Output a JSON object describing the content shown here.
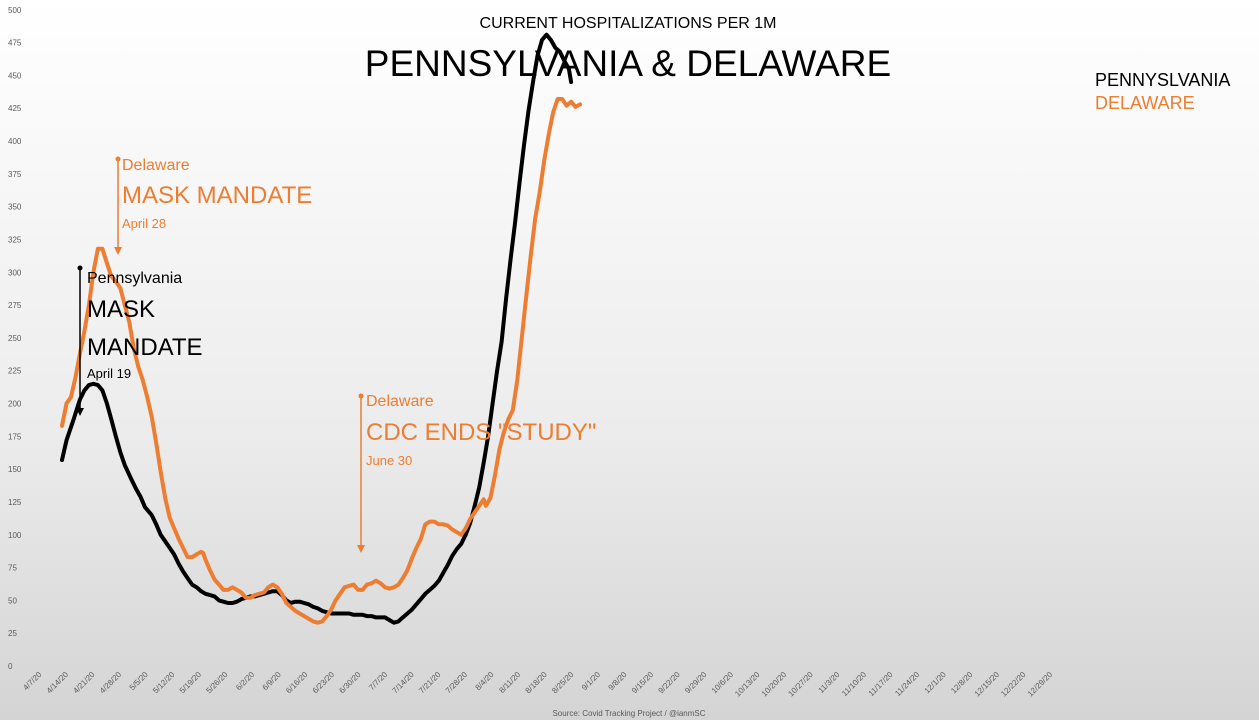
{
  "chart_data": {
    "type": "line",
    "title": "PENNSYLVANIA & DELAWARE",
    "subtitle": "CURRENT HOSPITALIZATIONS PER 1M",
    "source": "Source: Covid Tracking Project / @ianmSC",
    "ylim": [
      0,
      500
    ],
    "yticks": [
      0,
      25,
      50,
      75,
      100,
      125,
      150,
      175,
      200,
      225,
      250,
      275,
      300,
      325,
      350,
      375,
      400,
      425,
      450,
      475,
      500
    ],
    "x_tick_labels": [
      "4/7/20",
      "4/14/20",
      "4/21/20",
      "4/28/20",
      "5/5/20",
      "5/12/20",
      "5/19/20",
      "5/26/20",
      "6/2/20",
      "6/9/20",
      "6/16/20",
      "6/23/20",
      "6/30/20",
      "7/7/20",
      "7/14/20",
      "7/21/20",
      "7/28/20",
      "8/4/20",
      "8/11/20",
      "8/18/20",
      "8/25/20",
      "9/1/20",
      "9/8/20",
      "9/15/20",
      "9/22/20",
      "9/29/20",
      "10/6/20",
      "10/13/20",
      "10/20/20",
      "10/27/20",
      "11/3/20",
      "11/10/20",
      "11/17/20",
      "11/24/20",
      "12/1/20",
      "12/8/20",
      "12/15/20",
      "12/22/20",
      "12/29/20"
    ],
    "grid": false,
    "series": [
      {
        "name": "PENNYSLVANIA",
        "color": "#000000",
        "points": [
          [
            0,
            157
          ],
          [
            2,
            172
          ],
          [
            5,
            187
          ],
          [
            8,
            203
          ],
          [
            10,
            210
          ],
          [
            12,
            214
          ],
          [
            14,
            215
          ],
          [
            16,
            214
          ],
          [
            18,
            210
          ],
          [
            20,
            200
          ],
          [
            22,
            188
          ],
          [
            24,
            175
          ],
          [
            26,
            163
          ],
          [
            28,
            153
          ],
          [
            31,
            142
          ],
          [
            33,
            135
          ],
          [
            35,
            129
          ],
          [
            37,
            121
          ],
          [
            40,
            115
          ],
          [
            42,
            108
          ],
          [
            44,
            100
          ],
          [
            46,
            95
          ],
          [
            48,
            90
          ],
          [
            50,
            85
          ],
          [
            52,
            78
          ],
          [
            54,
            72
          ],
          [
            56,
            67
          ],
          [
            58,
            62
          ],
          [
            60,
            60
          ],
          [
            62,
            57
          ],
          [
            64,
            55
          ],
          [
            66,
            54
          ],
          [
            68,
            53
          ],
          [
            70,
            50
          ],
          [
            72,
            49
          ],
          [
            74,
            48
          ],
          [
            76,
            48
          ],
          [
            78,
            49
          ],
          [
            80,
            51
          ],
          [
            82,
            52
          ],
          [
            84,
            53
          ],
          [
            86,
            53
          ],
          [
            88,
            54
          ],
          [
            90,
            55
          ],
          [
            92,
            56
          ],
          [
            94,
            57
          ],
          [
            96,
            57
          ],
          [
            98,
            54
          ],
          [
            100,
            50
          ],
          [
            102,
            48
          ],
          [
            104,
            49
          ],
          [
            106,
            49
          ],
          [
            108,
            48
          ],
          [
            110,
            47
          ],
          [
            112,
            45
          ],
          [
            114,
            44
          ],
          [
            116,
            42
          ],
          [
            118,
            41
          ],
          [
            120,
            40
          ],
          [
            122,
            40
          ],
          [
            124,
            40
          ],
          [
            126,
            40
          ],
          [
            128,
            40
          ],
          [
            130,
            39
          ],
          [
            132,
            39
          ],
          [
            134,
            39
          ],
          [
            136,
            38
          ],
          [
            138,
            38
          ],
          [
            140,
            37
          ],
          [
            142,
            37
          ],
          [
            144,
            37
          ],
          [
            146,
            35
          ],
          [
            148,
            33
          ],
          [
            150,
            34
          ],
          [
            152,
            37
          ],
          [
            154,
            40
          ],
          [
            156,
            43
          ],
          [
            158,
            47
          ],
          [
            160,
            51
          ],
          [
            162,
            55
          ],
          [
            164,
            58
          ],
          [
            166,
            61
          ],
          [
            168,
            65
          ],
          [
            170,
            71
          ],
          [
            172,
            77
          ],
          [
            174,
            84
          ],
          [
            176,
            89
          ],
          [
            178,
            93
          ],
          [
            180,
            100
          ],
          [
            182,
            109
          ],
          [
            184,
            122
          ],
          [
            186,
            136
          ],
          [
            188,
            155
          ],
          [
            190,
            175
          ],
          [
            192,
            200
          ],
          [
            194,
            225
          ],
          [
            196,
            247
          ],
          [
            198,
            280
          ],
          [
            200,
            310
          ],
          [
            202,
            338
          ],
          [
            204,
            368
          ],
          [
            206,
            397
          ],
          [
            208,
            423
          ],
          [
            210,
            445
          ],
          [
            212,
            465
          ],
          [
            214,
            477
          ],
          [
            216,
            481
          ],
          [
            218,
            477
          ],
          [
            220,
            471
          ],
          [
            222,
            468
          ],
          [
            224,
            461
          ],
          [
            226,
            455
          ],
          [
            227,
            445
          ]
        ]
      },
      {
        "name": "DELAWARE",
        "color": "#ED7D31",
        "points": [
          [
            0,
            183
          ],
          [
            2,
            200
          ],
          [
            4,
            205
          ],
          [
            6,
            220
          ],
          [
            8,
            238
          ],
          [
            10,
            255
          ],
          [
            12,
            275
          ],
          [
            14,
            300
          ],
          [
            16,
            318
          ],
          [
            18,
            318
          ],
          [
            20,
            307
          ],
          [
            22,
            297
          ],
          [
            24,
            293
          ],
          [
            26,
            288
          ],
          [
            28,
            275
          ],
          [
            30,
            262
          ],
          [
            32,
            242
          ],
          [
            34,
            228
          ],
          [
            36,
            218
          ],
          [
            38,
            205
          ],
          [
            40,
            190
          ],
          [
            42,
            170
          ],
          [
            44,
            148
          ],
          [
            46,
            128
          ],
          [
            48,
            113
          ],
          [
            50,
            105
          ],
          [
            52,
            97
          ],
          [
            54,
            90
          ],
          [
            56,
            83
          ],
          [
            58,
            83
          ],
          [
            60,
            85
          ],
          [
            62,
            87
          ],
          [
            63,
            86
          ],
          [
            64,
            81
          ],
          [
            66,
            73
          ],
          [
            68,
            66
          ],
          [
            70,
            62
          ],
          [
            72,
            58
          ],
          [
            74,
            58
          ],
          [
            76,
            60
          ],
          [
            78,
            58
          ],
          [
            80,
            56
          ],
          [
            82,
            52
          ],
          [
            84,
            52
          ],
          [
            86,
            54
          ],
          [
            88,
            55
          ],
          [
            90,
            56
          ],
          [
            92,
            60
          ],
          [
            94,
            62
          ],
          [
            96,
            60
          ],
          [
            98,
            55
          ],
          [
            100,
            48
          ],
          [
            102,
            45
          ],
          [
            104,
            42
          ],
          [
            106,
            40
          ],
          [
            108,
            38
          ],
          [
            110,
            36
          ],
          [
            112,
            34
          ],
          [
            114,
            33
          ],
          [
            116,
            34
          ],
          [
            118,
            38
          ],
          [
            120,
            43
          ],
          [
            122,
            50
          ],
          [
            124,
            55
          ],
          [
            126,
            60
          ],
          [
            128,
            61
          ],
          [
            130,
            62
          ],
          [
            132,
            58
          ],
          [
            134,
            58
          ],
          [
            136,
            62
          ],
          [
            138,
            63
          ],
          [
            140,
            65
          ],
          [
            142,
            63
          ],
          [
            144,
            60
          ],
          [
            146,
            59
          ],
          [
            148,
            60
          ],
          [
            150,
            62
          ],
          [
            152,
            67
          ],
          [
            154,
            73
          ],
          [
            156,
            82
          ],
          [
            158,
            90
          ],
          [
            160,
            97
          ],
          [
            162,
            108
          ],
          [
            164,
            110
          ],
          [
            166,
            110
          ],
          [
            168,
            108
          ],
          [
            170,
            108
          ],
          [
            172,
            107
          ],
          [
            174,
            104
          ],
          [
            176,
            102
          ],
          [
            178,
            100
          ],
          [
            180,
            105
          ],
          [
            182,
            112
          ],
          [
            184,
            117
          ],
          [
            186,
            122
          ],
          [
            188,
            127
          ],
          [
            189,
            122
          ],
          [
            191,
            128
          ],
          [
            193,
            145
          ],
          [
            195,
            165
          ],
          [
            197,
            178
          ],
          [
            199,
            188
          ],
          [
            201,
            195
          ],
          [
            203,
            218
          ],
          [
            205,
            250
          ],
          [
            207,
            282
          ],
          [
            209,
            313
          ],
          [
            211,
            341
          ],
          [
            213,
            361
          ],
          [
            215,
            385
          ],
          [
            217,
            405
          ],
          [
            219,
            422
          ],
          [
            221,
            432
          ],
          [
            223,
            432
          ],
          [
            225,
            427
          ],
          [
            227,
            430
          ],
          [
            229,
            426
          ],
          [
            231,
            428
          ]
        ]
      }
    ],
    "annotations": [
      {
        "date_label": "April 28",
        "state": "Delaware",
        "text": "MASK MANDATE",
        "color": "#ED7D31"
      },
      {
        "date_label": "April 19",
        "state": "Pennsylvania",
        "text": [
          "MASK",
          "MANDATE"
        ],
        "color": "#000000"
      },
      {
        "date_label": "June 30",
        "state": "Delaware",
        "text": "CDC ENDS \"STUDY\"",
        "color": "#ED7D31"
      }
    ]
  }
}
